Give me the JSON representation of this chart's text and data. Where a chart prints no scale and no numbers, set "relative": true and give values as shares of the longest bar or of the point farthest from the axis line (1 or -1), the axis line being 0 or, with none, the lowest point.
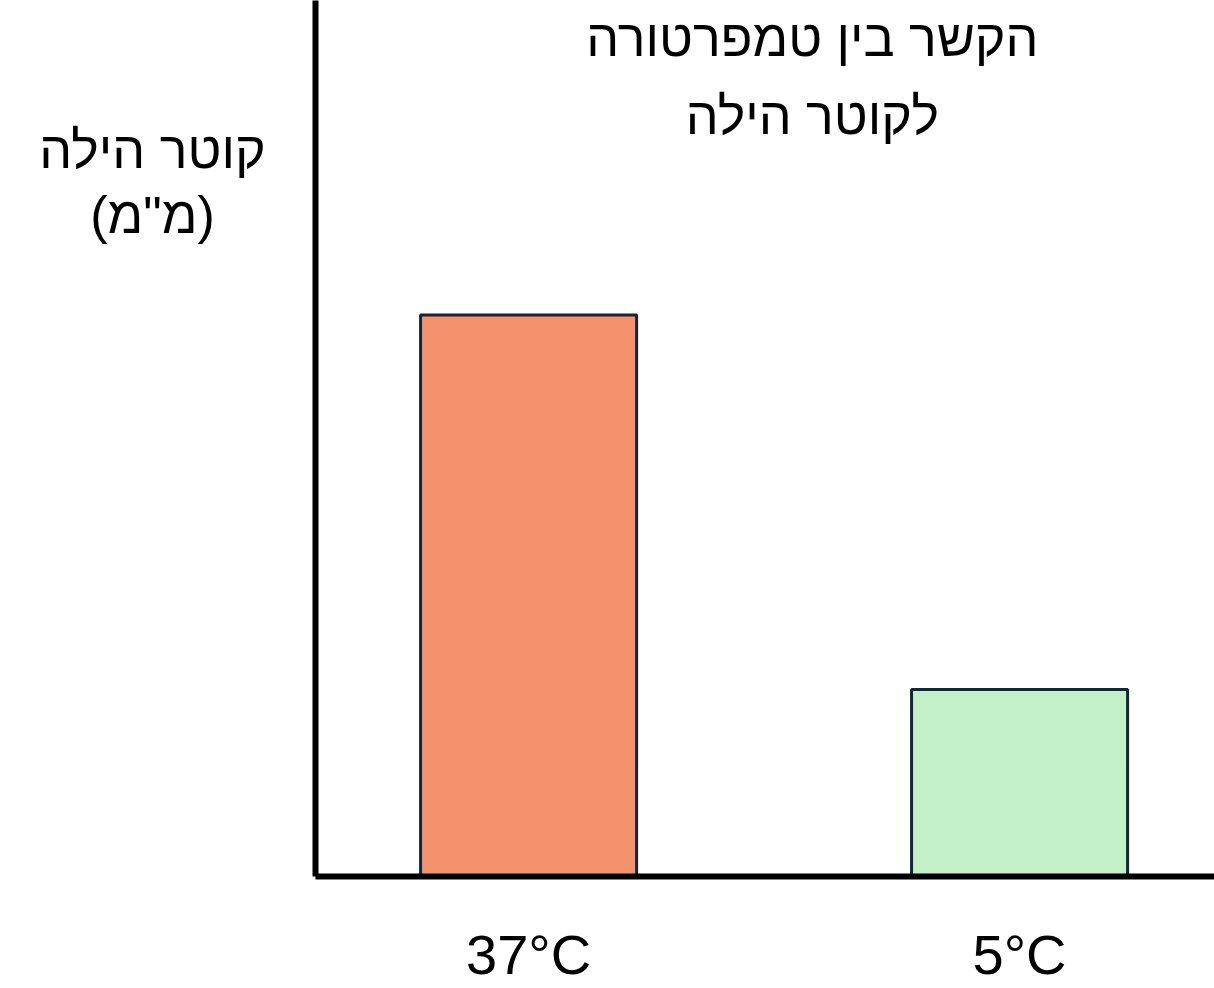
{
  "chart_data": {
    "type": "bar",
    "relative": true,
    "title": "הקשר בין טמפרטורה\nלקוטר הילה",
    "ylabel": "קוטר הילה\n(מ\"מ)",
    "categories": [
      "37°C",
      "5°C"
    ],
    "values": [
      1,
      0.333
    ],
    "colors": [
      "#f4926e",
      "#c4f0c8"
    ]
  }
}
